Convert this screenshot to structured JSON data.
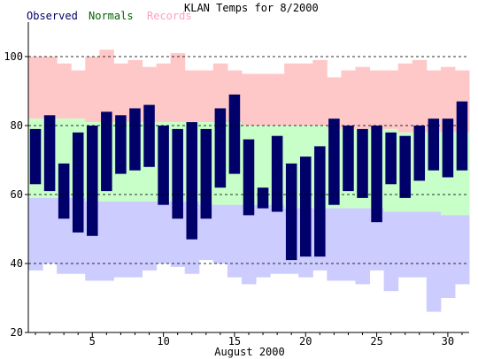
{
  "chart_data": {
    "type": "bar",
    "title": "KLAN Temps for 8/2000",
    "xlabel": "August 2000",
    "ylabel": "",
    "ylim": [
      20,
      110
    ],
    "xlim": [
      0.5,
      31.5
    ],
    "legend_placement": "top-left",
    "grid": "dashed horizontal at 40, 60, 80, 100",
    "y_ticks": [
      "20",
      "40",
      "60",
      "80",
      "100"
    ],
    "y_tick_values": [
      20,
      40,
      60,
      80,
      100
    ],
    "x_ticks": [
      "5",
      "10",
      "15",
      "20",
      "25",
      "30"
    ],
    "x_tick_values": [
      5,
      10,
      15,
      20,
      25,
      30
    ],
    "days": [
      1,
      2,
      3,
      4,
      5,
      6,
      7,
      8,
      9,
      10,
      11,
      12,
      13,
      14,
      15,
      16,
      17,
      18,
      19,
      20,
      21,
      22,
      23,
      24,
      25,
      26,
      27,
      28,
      29,
      30,
      31
    ],
    "series": [
      {
        "name": "Observed",
        "color": "#00006a",
        "high": [
          79,
          83,
          69,
          78,
          80,
          84,
          83,
          85,
          86,
          80,
          79,
          81,
          79,
          85,
          89,
          76,
          62,
          77,
          69,
          71,
          74,
          82,
          80,
          79,
          80,
          78,
          77,
          80,
          82,
          82,
          87
        ],
        "low": [
          63,
          61,
          53,
          49,
          48,
          61,
          66,
          67,
          68,
          57,
          53,
          47,
          53,
          62,
          66,
          54,
          56,
          55,
          41,
          42,
          42,
          57,
          61,
          59,
          52,
          63,
          59,
          64,
          67,
          65,
          67
        ]
      },
      {
        "name": "Normals",
        "color": "#c8ffc8",
        "label_color": "#006400",
        "high": [
          82,
          82,
          82,
          82,
          81,
          81,
          81,
          81,
          81,
          81,
          81,
          81,
          81,
          81,
          81,
          80,
          80,
          80,
          80,
          80,
          80,
          79,
          79,
          79,
          79,
          79,
          78,
          78,
          78,
          78,
          78
        ],
        "low": [
          59,
          59,
          59,
          59,
          58,
          58,
          58,
          58,
          58,
          58,
          58,
          58,
          57,
          57,
          57,
          57,
          57,
          57,
          56,
          56,
          56,
          56,
          56,
          56,
          56,
          55,
          55,
          55,
          55,
          54,
          54
        ]
      },
      {
        "name": "Records",
        "color": "#ffc8c8",
        "label_color": "#ff9ec8",
        "high": [
          100,
          100,
          98,
          96,
          100,
          102,
          98,
          99,
          97,
          98,
          101,
          96,
          96,
          98,
          96,
          95,
          95,
          95,
          98,
          98,
          99,
          94,
          96,
          97,
          96,
          96,
          98,
          99,
          96,
          97,
          96
        ],
        "low": [
          38,
          40,
          37,
          37,
          35,
          35,
          36,
          36,
          38,
          40,
          39,
          37,
          41,
          40,
          36,
          34,
          36,
          37,
          37,
          36,
          38,
          35,
          35,
          34,
          38,
          32,
          36,
          36,
          26,
          30,
          34
        ]
      }
    ],
    "low_band_color": "#ccccff",
    "grid_color": "#000000"
  }
}
